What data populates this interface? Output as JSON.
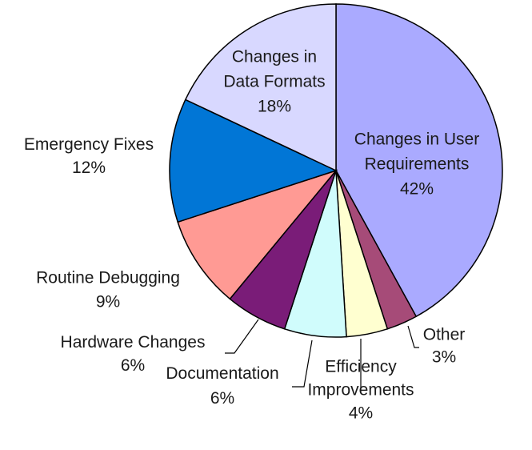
{
  "chart_data": {
    "type": "pie",
    "title": "",
    "start_angle_deg": 0,
    "direction": "clockwise",
    "legend": "none",
    "slices": [
      {
        "name_lines": [
          "Changes in User",
          "Requirements"
        ],
        "percent_label": "42%",
        "value": 42,
        "color": "#aaaaff"
      },
      {
        "name_lines": [
          "Other"
        ],
        "percent_label": "3%",
        "value": 3,
        "color": "#a64b78"
      },
      {
        "name_lines": [
          "Efficiency",
          "Improvements"
        ],
        "percent_label": "4%",
        "value": 4,
        "color": "#ffffd0"
      },
      {
        "name_lines": [
          "Documentation"
        ],
        "percent_label": "6%",
        "value": 6,
        "color": "#d0fcfc"
      },
      {
        "name_lines": [
          "Hardware Changes"
        ],
        "percent_label": "6%",
        "value": 6,
        "color": "#7a1c78"
      },
      {
        "name_lines": [
          "Routine Debugging"
        ],
        "percent_label": "9%",
        "value": 9,
        "color": "#ff9a94"
      },
      {
        "name_lines": [
          "Emergency Fixes"
        ],
        "percent_label": "12%",
        "value": 12,
        "color": "#0176d6"
      },
      {
        "name_lines": [
          "Changes in",
          "Data Formats"
        ],
        "percent_label": "18%",
        "value": 18,
        "color": "#d8d8ff"
      }
    ]
  }
}
